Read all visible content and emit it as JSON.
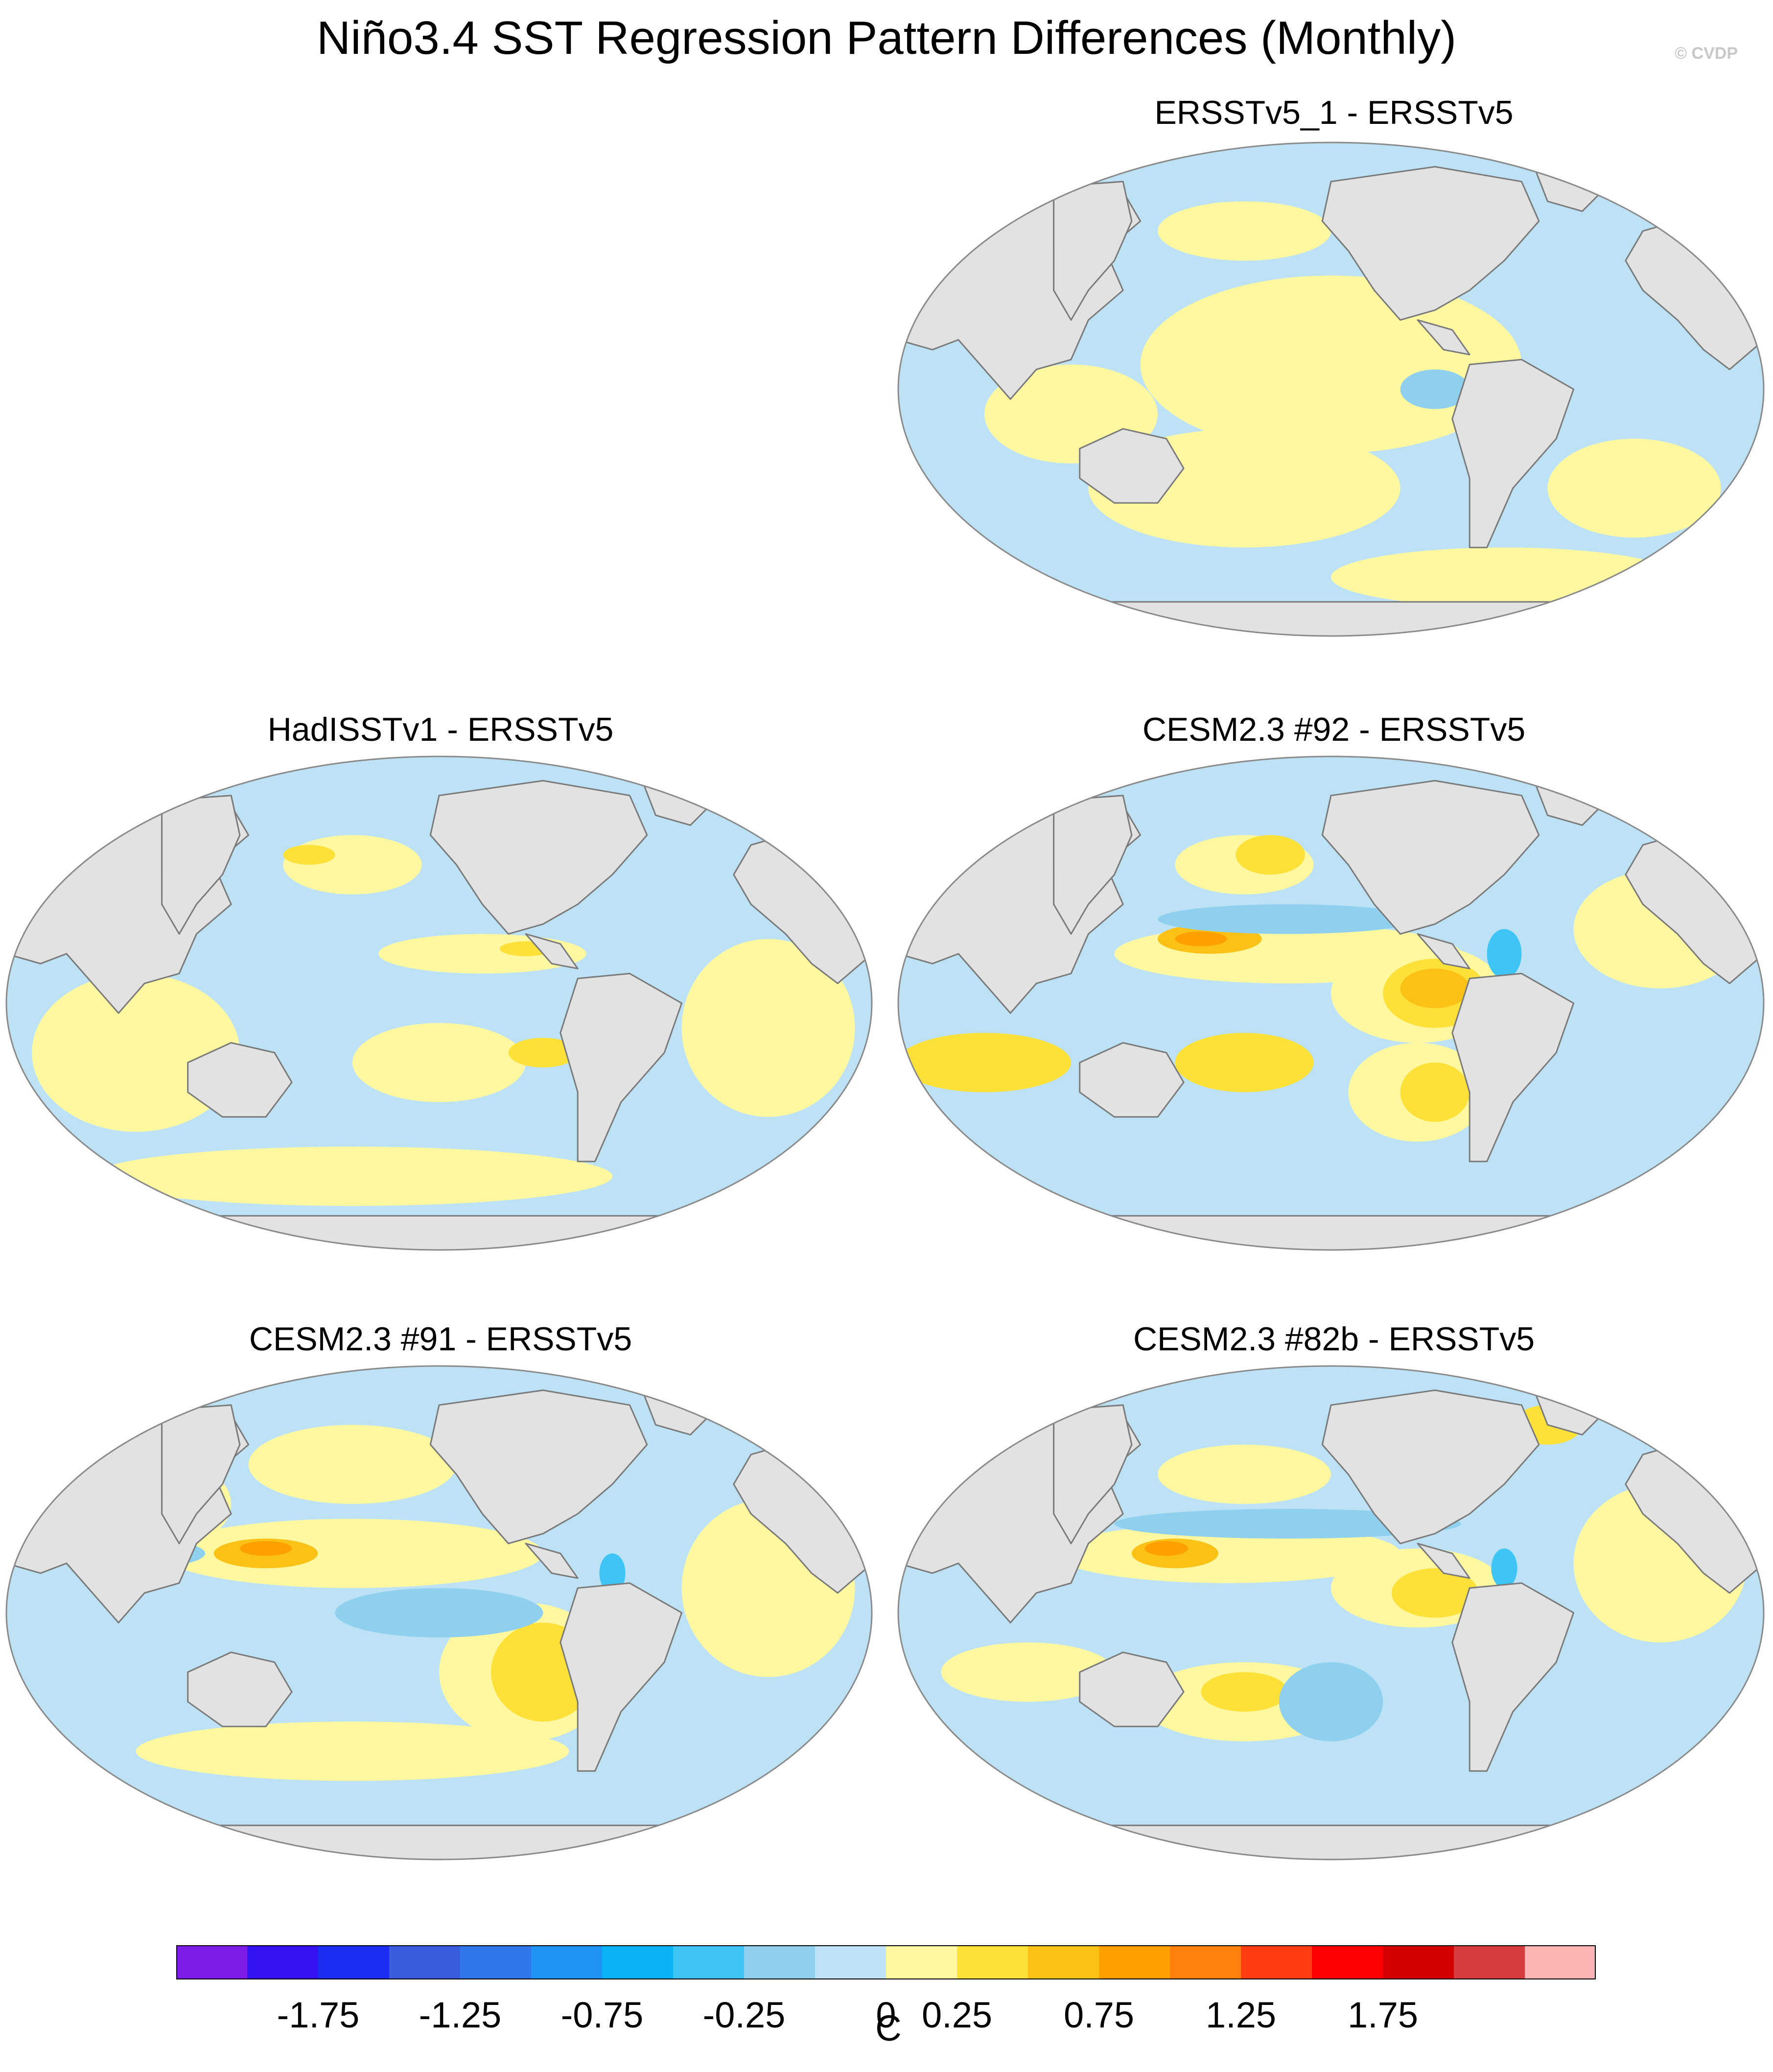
{
  "title": "Niño3.4 SST Regression Pattern Differences (Monthly)",
  "copyright": "© CVDP",
  "panels": [
    {
      "id": "p1",
      "title": "ERSSTv5_1 - ERSSTv5"
    },
    {
      "id": "p2",
      "title": "HadISSTv1 - ERSSTv5"
    },
    {
      "id": "p3",
      "title": "CESM2.3 #92 - ERSSTv5"
    },
    {
      "id": "p4",
      "title": "CESM2.3 #91 - ERSSTv5"
    },
    {
      "id": "p5",
      "title": "CESM2.3 #82b - ERSSTv5"
    }
  ],
  "colorbar": {
    "unit": "C",
    "colors": [
      "#7f1de8",
      "#3412f2",
      "#1a2df0",
      "#3a5de0",
      "#2f77ea",
      "#2193f5",
      "#0bb3f6",
      "#3ec4f5",
      "#8fd0ef",
      "#bde2f5",
      "#fff8a0",
      "#fde139",
      "#fbc116",
      "#ffa000",
      "#ff7f0f",
      "#ff3d0e",
      "#ff0000",
      "#d40000",
      "#d63c3c",
      "#fbb3b3"
    ],
    "labels": [
      "-1.75",
      "-1.25",
      "-0.75",
      "-0.25",
      "0",
      "0.25",
      "0.75",
      "1.25",
      "1.75"
    ]
  },
  "map_colors": {
    "land": "#e2e2e2",
    "coast": "#7a7a7a",
    "negative_small": "#bde2f5",
    "negative_mid": "#8fd0ef",
    "negative_strong": "#3ec4f5",
    "positive_small": "#fff8a0",
    "positive_mid": "#fde139",
    "positive_strong": "#fbc116",
    "positive_peak": "#ffa000"
  }
}
